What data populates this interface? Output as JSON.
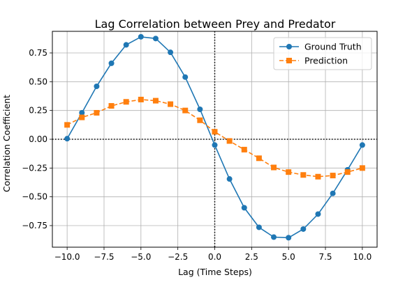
{
  "chart_data": {
    "type": "line",
    "title": "Lag Correlation between Prey and Predator",
    "xlabel": "Lag (Time Steps)",
    "ylabel": "Correlation Coefficient",
    "xlim": [
      -11,
      11
    ],
    "ylim": [
      -0.9375,
      0.9375
    ],
    "xticks": [
      -10.0,
      -7.5,
      -5.0,
      -2.5,
      0.0,
      2.5,
      5.0,
      7.5,
      10.0
    ],
    "xtick_labels": [
      "−10.0",
      "−7.5",
      "−5.0",
      "−2.5",
      "0.0",
      "2.5",
      "5.0",
      "7.5",
      "10.0"
    ],
    "yticks": [
      -0.75,
      -0.5,
      -0.25,
      0.0,
      0.25,
      0.5,
      0.75
    ],
    "ytick_labels": [
      "−0.75",
      "−0.50",
      "−0.25",
      "0.00",
      "0.25",
      "0.50",
      "0.75"
    ],
    "grid": true,
    "legend_position": "top-right",
    "reference_lines": [
      {
        "orientation": "horizontal",
        "value": 0,
        "style": "dotted",
        "color": "#000000"
      },
      {
        "orientation": "vertical",
        "value": 0,
        "style": "dotted",
        "color": "#000000"
      }
    ],
    "x": [
      -10,
      -9,
      -8,
      -7,
      -6,
      -5,
      -4,
      -3,
      -2,
      -1,
      0,
      1,
      2,
      3,
      4,
      5,
      6,
      7,
      8,
      9,
      10
    ],
    "series": [
      {
        "name": "Ground Truth",
        "color": "#1f77b4",
        "marker": "circle",
        "line_style": "solid",
        "values": [
          0.005,
          0.23,
          0.46,
          0.66,
          0.82,
          0.89,
          0.875,
          0.755,
          0.54,
          0.26,
          -0.05,
          -0.345,
          -0.595,
          -0.765,
          -0.85,
          -0.855,
          -0.78,
          -0.65,
          -0.47,
          -0.265,
          -0.05
        ]
      },
      {
        "name": "Prediction",
        "color": "#ff7f0e",
        "marker": "square",
        "line_style": "dashed",
        "values": [
          0.125,
          0.19,
          0.23,
          0.29,
          0.325,
          0.345,
          0.335,
          0.305,
          0.25,
          0.165,
          0.065,
          -0.015,
          -0.09,
          -0.165,
          -0.245,
          -0.285,
          -0.31,
          -0.325,
          -0.315,
          -0.285,
          -0.25
        ]
      }
    ]
  }
}
